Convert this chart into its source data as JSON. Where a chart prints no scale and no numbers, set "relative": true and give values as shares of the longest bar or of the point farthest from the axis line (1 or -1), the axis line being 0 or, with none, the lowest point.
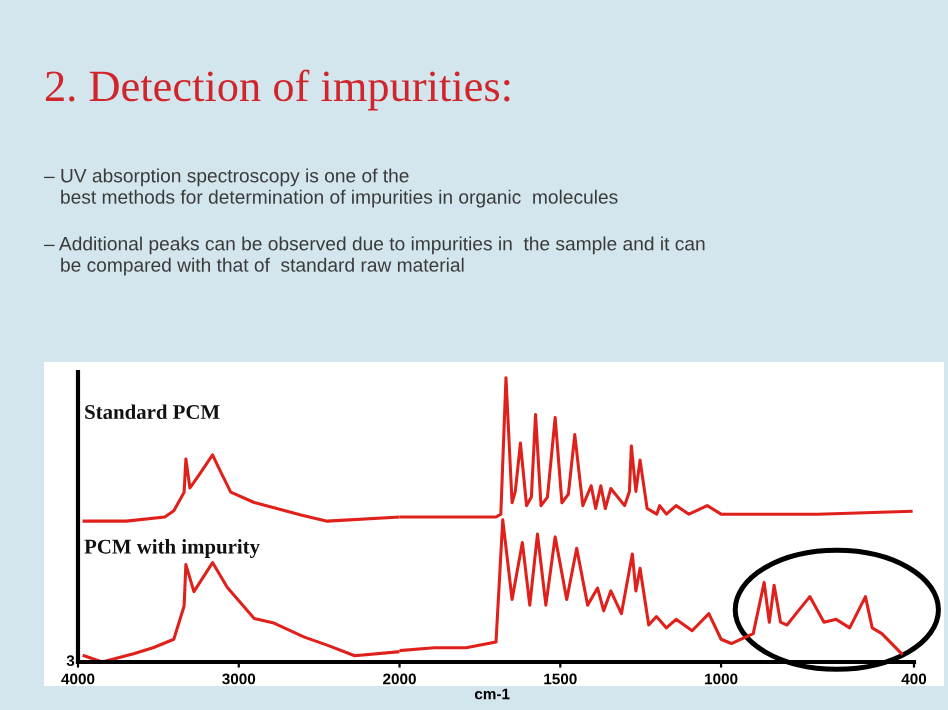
{
  "chart_data": [
    {
      "type": "line",
      "title": "2. Detection of impurities:",
      "relative": true,
      "annotations": [
        "– UV absorption spectroscopy is one of the\n   best methods for determination of impurities in organic  molecules",
        "– Additional peaks can be observed due to impurities in  the sample and it can\n   be compared with that of  standard raw material",
        "3"
      ],
      "xlim": [
        4000,
        2000
      ],
      "xticks": [
        4000,
        3000,
        2000
      ],
      "grid": false,
      "legend": false,
      "marker": "none",
      "line_style": "solid",
      "series": [
        {
          "name": "Standard PCM",
          "color": "#e0201b",
          "x": [
            3962,
            3700,
            3460,
            3404,
            3340,
            3329,
            3304,
            3250,
            3163,
            3120,
            3050,
            2904,
            2613,
            2450,
            2000
          ],
          "values": [
            0.68,
            0.68,
            0.7,
            0.73,
            0.82,
            0.98,
            0.84,
            0.9,
            1.0,
            0.93,
            0.82,
            0.77,
            0.71,
            0.68,
            0.7
          ]
        },
        {
          "name": "PCM with impurity",
          "color": "#e0201b",
          "x": [
            3962,
            3850,
            3654,
            3529,
            3404,
            3340,
            3329,
            3279,
            3163,
            3071,
            2904,
            2788,
            2592,
            2446,
            2279,
            2000
          ],
          "values": [
            0.03,
            0.0,
            0.04,
            0.07,
            0.11,
            0.27,
            0.47,
            0.34,
            0.48,
            0.36,
            0.21,
            0.19,
            0.12,
            0.08,
            0.03,
            0.05
          ]
        }
      ]
    },
    {
      "type": "line",
      "xlabel": "cm-1",
      "relative": true,
      "xlim": [
        2000,
        400
      ],
      "xticks": [
        1500,
        1000,
        400
      ],
      "grid": false,
      "legend": false,
      "marker": "none",
      "line_style": "solid",
      "series": [
        {
          "color": "#e0201b",
          "x": [
            2000,
            1750,
            1700,
            1685,
            1669,
            1650,
            1640,
            1624,
            1605,
            1590,
            1577,
            1560,
            1540,
            1516,
            1495,
            1475,
            1455,
            1430,
            1404,
            1390,
            1374,
            1360,
            1343,
            1300,
            1285,
            1279,
            1265,
            1252,
            1230,
            1200,
            1191,
            1170,
            1140,
            1100,
            1043,
            1000,
            957,
            900,
            700,
            409
          ],
          "values": [
            0.51,
            0.51,
            0.51,
            0.52,
            1.0,
            0.56,
            0.6,
            0.77,
            0.55,
            0.58,
            0.87,
            0.55,
            0.58,
            0.86,
            0.56,
            0.59,
            0.8,
            0.55,
            0.62,
            0.54,
            0.62,
            0.54,
            0.61,
            0.55,
            0.6,
            0.76,
            0.6,
            0.71,
            0.54,
            0.52,
            0.55,
            0.52,
            0.55,
            0.52,
            0.55,
            0.52,
            0.52,
            0.52,
            0.52,
            0.53
          ]
        },
        {
          "color": "#e0201b",
          "x": [
            2000,
            1892,
            1793,
            1700,
            1679,
            1650,
            1618,
            1595,
            1571,
            1545,
            1516,
            1480,
            1449,
            1415,
            1384,
            1365,
            1343,
            1310,
            1276,
            1265,
            1252,
            1225,
            1201,
            1170,
            1140,
            1090,
            1038,
            1000,
            968,
            900,
            866,
            850,
            835,
            815,
            795,
            760,
            724,
            680,
            642,
            600,
            551,
            530,
            500,
            439
          ],
          "values": [
            0.04,
            0.05,
            0.05,
            0.07,
            0.5,
            0.22,
            0.42,
            0.2,
            0.45,
            0.2,
            0.44,
            0.22,
            0.4,
            0.2,
            0.26,
            0.18,
            0.25,
            0.17,
            0.38,
            0.25,
            0.33,
            0.13,
            0.16,
            0.12,
            0.15,
            0.11,
            0.17,
            0.08,
            0.065,
            0.1,
            0.28,
            0.14,
            0.27,
            0.14,
            0.13,
            0.18,
            0.23,
            0.14,
            0.15,
            0.12,
            0.23,
            0.12,
            0.1,
            0.03
          ]
        }
      ]
    }
  ]
}
